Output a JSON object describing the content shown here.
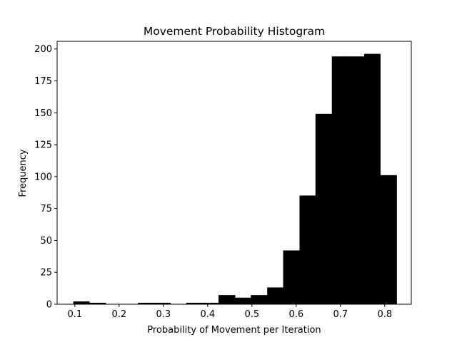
{
  "chart_data": {
    "type": "bar",
    "title": "Movement Probability Histogram",
    "xlabel": "Probability of Movement per Iteration",
    "ylabel": "Frequency",
    "xlim": [
      0.06,
      0.86
    ],
    "ylim": [
      0,
      206
    ],
    "xticks": [
      0.1,
      0.2,
      0.3,
      0.4,
      0.5,
      0.6,
      0.7,
      0.8
    ],
    "yticks": [
      0,
      25,
      50,
      75,
      100,
      125,
      150,
      175,
      200
    ],
    "bar_color": "#000000",
    "bins": [
      {
        "x0": 0.097,
        "x1": 0.133,
        "value": 2
      },
      {
        "x0": 0.133,
        "x1": 0.17,
        "value": 1
      },
      {
        "x0": 0.17,
        "x1": 0.206,
        "value": 0
      },
      {
        "x0": 0.206,
        "x1": 0.243,
        "value": 0
      },
      {
        "x0": 0.243,
        "x1": 0.279,
        "value": 1
      },
      {
        "x0": 0.279,
        "x1": 0.316,
        "value": 1
      },
      {
        "x0": 0.316,
        "x1": 0.352,
        "value": 0
      },
      {
        "x0": 0.352,
        "x1": 0.389,
        "value": 1
      },
      {
        "x0": 0.389,
        "x1": 0.425,
        "value": 1
      },
      {
        "x0": 0.425,
        "x1": 0.462,
        "value": 7
      },
      {
        "x0": 0.462,
        "x1": 0.498,
        "value": 5
      },
      {
        "x0": 0.498,
        "x1": 0.535,
        "value": 7
      },
      {
        "x0": 0.535,
        "x1": 0.571,
        "value": 13
      },
      {
        "x0": 0.571,
        "x1": 0.608,
        "value": 42
      },
      {
        "x0": 0.608,
        "x1": 0.644,
        "value": 85
      },
      {
        "x0": 0.644,
        "x1": 0.681,
        "value": 149
      },
      {
        "x0": 0.681,
        "x1": 0.717,
        "value": 194
      },
      {
        "x0": 0.717,
        "x1": 0.754,
        "value": 194
      },
      {
        "x0": 0.754,
        "x1": 0.79,
        "value": 196
      },
      {
        "x0": 0.79,
        "x1": 0.827,
        "value": 101
      }
    ]
  }
}
